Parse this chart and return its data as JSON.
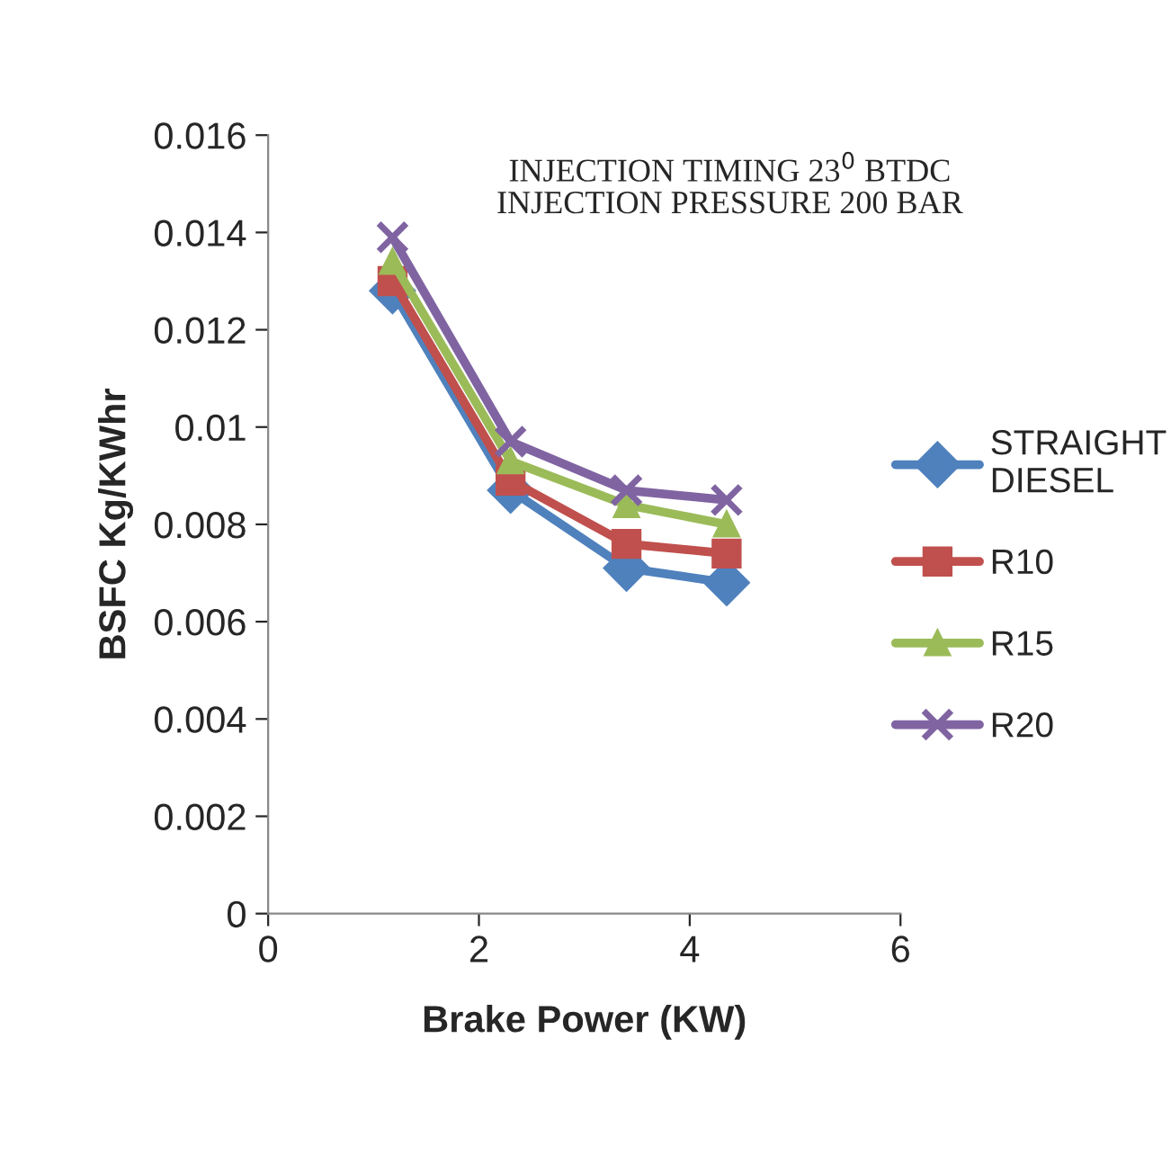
{
  "chart_data": {
    "type": "line",
    "title": "INJECTION TIMING 23$^{0}$ BTDC\nINJECTION PRESSURE 200 BAR",
    "xlabel": "Brake Power (KW)",
    "ylabel": "BSFC Kg/KWhr",
    "x": [
      1.18,
      2.3,
      3.4,
      4.35
    ],
    "series": [
      {
        "name": "STRAIGHT DIESEL",
        "color": "#4f81bd",
        "marker": "diamond",
        "values": [
          0.0128,
          0.0087,
          0.0071,
          0.0068
        ]
      },
      {
        "name": "R10",
        "color": "#c0504d",
        "marker": "square",
        "values": [
          0.013,
          0.0089,
          0.0076,
          0.0074
        ]
      },
      {
        "name": "R15",
        "color": "#9bbb59",
        "marker": "triangle",
        "values": [
          0.0134,
          0.0093,
          0.0084,
          0.008
        ]
      },
      {
        "name": "R20",
        "color": "#8064a2",
        "marker": "cross",
        "values": [
          0.0139,
          0.0097,
          0.0087,
          0.0085
        ]
      }
    ],
    "xlim": [
      0,
      6
    ],
    "xticks": [
      0,
      2,
      4,
      6
    ],
    "ylim": [
      0,
      0.016
    ],
    "yticks": [
      0,
      {
        "value": 0.002,
        "label": "0.002"
      },
      {
        "value": 0.004,
        "label": "0.004"
      },
      {
        "value": 0.006,
        "label": "0.006"
      },
      {
        "value": 0.008,
        "label": "0.008"
      },
      {
        "value": 0.01,
        "label": "0.01"
      },
      {
        "value": 0.012,
        "label": "0.012"
      },
      {
        "value": 0.014,
        "label": "0.014"
      },
      {
        "value": 0.016,
        "label": "0.016"
      }
    ],
    "grid": false,
    "legend": "right",
    "line_style": "solid"
  }
}
